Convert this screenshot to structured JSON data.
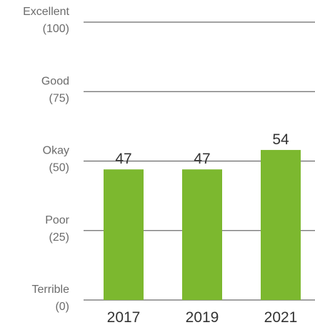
{
  "chart_data": {
    "type": "bar",
    "categories": [
      "2017",
      "2019",
      "2021"
    ],
    "values": [
      47,
      47,
      54
    ],
    "data_labels": [
      "47",
      "47",
      "54"
    ],
    "ylim": [
      0,
      100
    ],
    "y_ticks": [
      {
        "value": 100,
        "line1": "Excellent",
        "line2": "(100)"
      },
      {
        "value": 75,
        "line1": "Good",
        "line2": "(75)"
      },
      {
        "value": 50,
        "line1": "Okay",
        "line2": "(50)"
      },
      {
        "value": 25,
        "line1": "Poor",
        "line2": "(25)"
      },
      {
        "value": 0,
        "line1": "Terrible",
        "line2": "(0)"
      }
    ],
    "grid": true,
    "colors": {
      "bar": "#7cb82f",
      "grid": "#6b6b6b",
      "tick_text": "#6b6b6b",
      "label_text": "#333333"
    }
  }
}
